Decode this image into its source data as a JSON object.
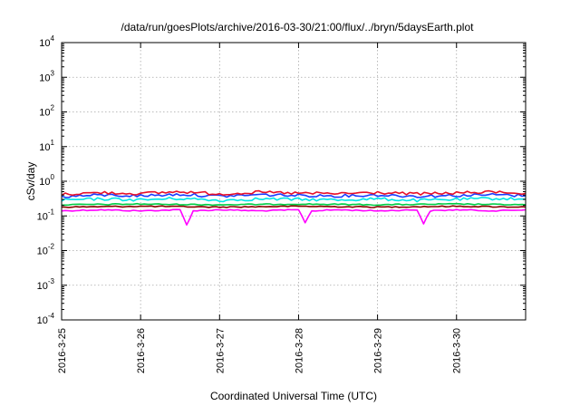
{
  "chart_data": {
    "type": "line",
    "title": "/data/run/goesPlots/archive/2016-03-30/21:00/flux/../bryn/5daysEarth.plot",
    "xlabel": "Coordinated Universal Time (UTC)",
    "ylabel": "cSv/day",
    "yscale": "log",
    "ylim": [
      0.0001,
      10000
    ],
    "xlim": [
      "2016-03-25",
      "2016-03-30T21:00"
    ],
    "grid": true,
    "legend": "none",
    "x_ticks": [
      "2016-3-25",
      "2016-3-26",
      "2016-3-27",
      "2016-3-28",
      "2016-3-29",
      "2016-3-30"
    ],
    "y_ticks": [
      {
        "value": 0.0001,
        "base": "10",
        "exp": "-4"
      },
      {
        "value": 0.001,
        "base": "10",
        "exp": "-3"
      },
      {
        "value": 0.01,
        "base": "10",
        "exp": "-2"
      },
      {
        "value": 0.1,
        "base": "10",
        "exp": "-1"
      },
      {
        "value": 1,
        "base": "10",
        "exp": "0"
      },
      {
        "value": 10,
        "base": "10",
        "exp": "1"
      },
      {
        "value": 100,
        "base": "10",
        "exp": "2"
      },
      {
        "value": 1000,
        "base": "10",
        "exp": "3"
      },
      {
        "value": 10000,
        "base": "10",
        "exp": "4"
      }
    ],
    "series": [
      {
        "color": "#ff00ff",
        "x": [
          "2016-03-25T00:00",
          "2016-03-25T12:00",
          "2016-03-26T00:00",
          "2016-03-26T12:00",
          "2016-03-26T14:00",
          "2016-03-26T16:00",
          "2016-03-27T00:00",
          "2016-03-27T12:00",
          "2016-03-28T00:00",
          "2016-03-28T02:00",
          "2016-03-28T04:00",
          "2016-03-28T12:00",
          "2016-03-29T00:00",
          "2016-03-29T12:00",
          "2016-03-29T14:00",
          "2016-03-29T16:00",
          "2016-03-30T00:00",
          "2016-03-30T12:00",
          "2016-03-30T21:00"
        ],
        "values": [
          0.14,
          0.15,
          0.14,
          0.15,
          0.055,
          0.14,
          0.15,
          0.14,
          0.15,
          0.065,
          0.14,
          0.15,
          0.14,
          0.15,
          0.06,
          0.14,
          0.15,
          0.14,
          0.15
        ]
      },
      {
        "color": "#8b0000",
        "x": [
          "2016-03-25T00:00",
          "2016-03-26T00:00",
          "2016-03-27T00:00",
          "2016-03-28T00:00",
          "2016-03-29T00:00",
          "2016-03-30T00:00",
          "2016-03-30T21:00"
        ],
        "values": [
          0.18,
          0.19,
          0.18,
          0.19,
          0.18,
          0.19,
          0.18
        ]
      },
      {
        "color": "#00cc44",
        "x": [
          "2016-03-25T00:00",
          "2016-03-26T00:00",
          "2016-03-27T00:00",
          "2016-03-28T00:00",
          "2016-03-29T00:00",
          "2016-03-30T00:00",
          "2016-03-30T21:00"
        ],
        "values": [
          0.21,
          0.22,
          0.21,
          0.22,
          0.21,
          0.22,
          0.21
        ]
      },
      {
        "color": "#00e5e5",
        "x": [
          "2016-03-25T00:00",
          "2016-03-25T12:00",
          "2016-03-26T00:00",
          "2016-03-26T12:00",
          "2016-03-27T00:00",
          "2016-03-27T12:00",
          "2016-03-28T00:00",
          "2016-03-28T12:00",
          "2016-03-29T00:00",
          "2016-03-29T12:00",
          "2016-03-30T00:00",
          "2016-03-30T12:00",
          "2016-03-30T21:00"
        ],
        "values": [
          0.28,
          0.31,
          0.29,
          0.32,
          0.28,
          0.31,
          0.3,
          0.29,
          0.31,
          0.28,
          0.3,
          0.32,
          0.3
        ]
      },
      {
        "color": "#1a3cff",
        "x": [
          "2016-03-25T00:00",
          "2016-03-25T12:00",
          "2016-03-26T00:00",
          "2016-03-26T12:00",
          "2016-03-27T00:00",
          "2016-03-27T12:00",
          "2016-03-28T00:00",
          "2016-03-28T12:00",
          "2016-03-29T00:00",
          "2016-03-29T12:00",
          "2016-03-30T00:00",
          "2016-03-30T12:00",
          "2016-03-30T21:00"
        ],
        "values": [
          0.36,
          0.4,
          0.38,
          0.42,
          0.37,
          0.41,
          0.39,
          0.38,
          0.4,
          0.37,
          0.39,
          0.41,
          0.38
        ]
      },
      {
        "color": "#e8102a",
        "x": [
          "2016-03-25T00:00",
          "2016-03-25T12:00",
          "2016-03-26T00:00",
          "2016-03-26T12:00",
          "2016-03-27T00:00",
          "2016-03-27T12:00",
          "2016-03-28T00:00",
          "2016-03-28T12:00",
          "2016-03-29T00:00",
          "2016-03-29T12:00",
          "2016-03-30T00:00",
          "2016-03-30T12:00",
          "2016-03-30T21:00"
        ],
        "values": [
          0.42,
          0.47,
          0.44,
          0.5,
          0.43,
          0.48,
          0.45,
          0.44,
          0.47,
          0.43,
          0.46,
          0.49,
          0.45
        ]
      }
    ]
  }
}
